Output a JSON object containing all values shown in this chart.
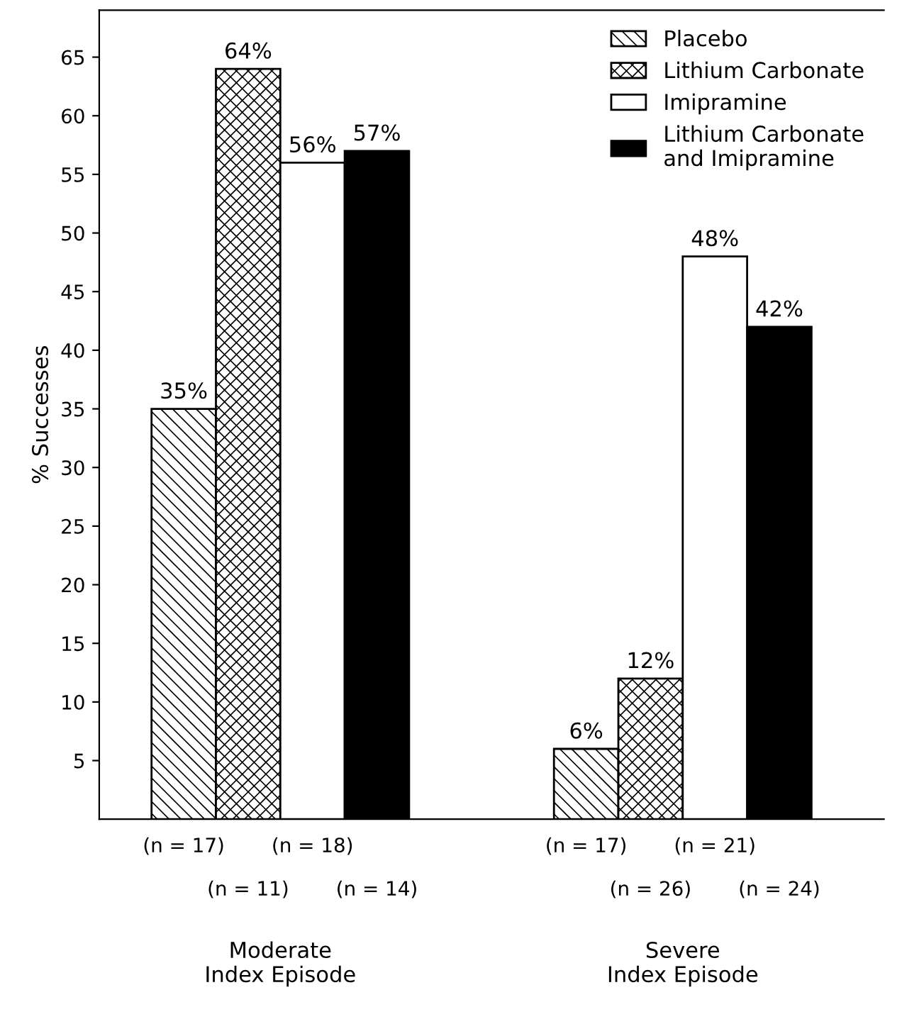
{
  "chart_data": {
    "type": "bar",
    "ylabel": "% Successes",
    "categories": [
      "Moderate\nIndex Episode",
      "Severe\nIndex Episode"
    ],
    "series": [
      {
        "name": "Placebo",
        "color": "#000000",
        "values": [
          35,
          6
        ],
        "value_labels": [
          "35%",
          "6%"
        ]
      },
      {
        "name": "Lithium Carbonate",
        "color": "#000000",
        "values": [
          64,
          12
        ],
        "value_labels": [
          "64%",
          "12%"
        ]
      },
      {
        "name": "Imipramine",
        "color": "#ffffff",
        "values": [
          56,
          48
        ],
        "value_labels": [
          "56%",
          "48%"
        ]
      },
      {
        "name": "Lithium Carbonate\nand Imipramine",
        "color": "#000000",
        "values": [
          57,
          42
        ],
        "value_labels": [
          "57%",
          "42%"
        ]
      }
    ],
    "ylim": [
      0,
      69
    ],
    "yticks": [
      5,
      10,
      15,
      20,
      25,
      30,
      35,
      40,
      45,
      50,
      55,
      60,
      65
    ],
    "grid": false,
    "legend": "top right",
    "annotations": [
      "(n = 17)",
      "(n = 11)",
      "(n = 18)",
      "(n = 14)",
      "(n = 17)",
      "(n = 26)",
      "(n = 21)",
      "(n = 24)"
    ]
  }
}
